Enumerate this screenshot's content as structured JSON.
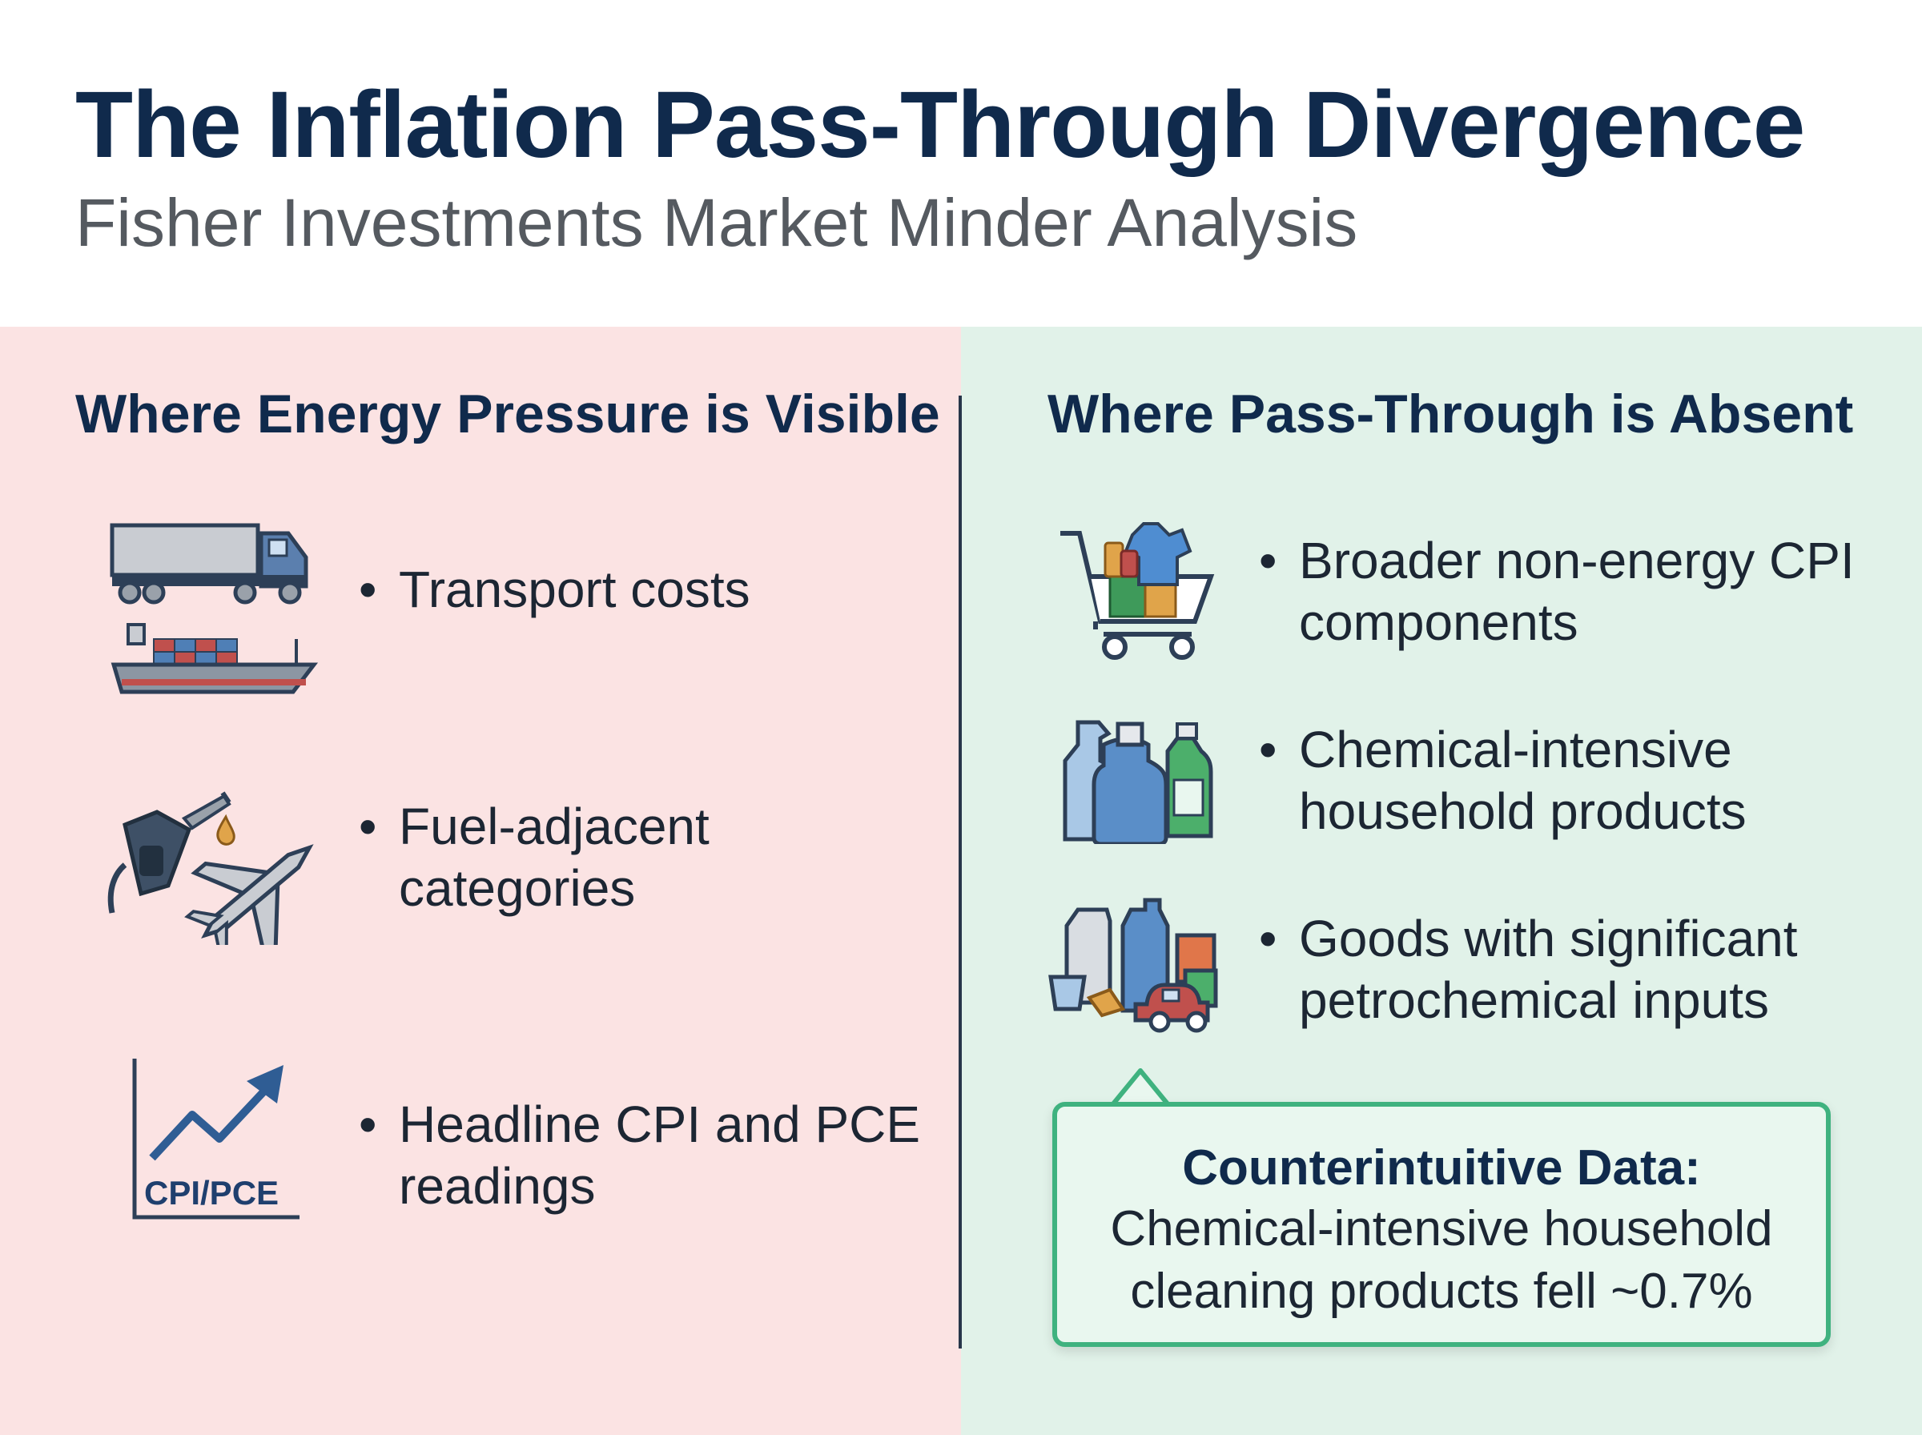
{
  "header": {
    "title": "The Inflation Pass-Through Divergence",
    "subtitle": "Fisher Investments Market Minder Analysis"
  },
  "left": {
    "heading": "Where Energy Pressure is Visible",
    "items": [
      {
        "text": "Transport costs",
        "icon": "truck-and-ship-icon"
      },
      {
        "text": "Fuel-adjacent categories",
        "icon": "fuel-nozzle-and-airplane-icon"
      },
      {
        "text": "Headline CPI and PCE readings",
        "icon": "rising-chart-icon",
        "icon_label": "CPI/PCE"
      }
    ]
  },
  "right": {
    "heading": "Where Pass-Through is Absent",
    "items": [
      {
        "text": "Broader non-energy CPI components",
        "icon": "shopping-cart-icon"
      },
      {
        "text": "Chemical-intensive household products",
        "icon": "cleaning-bottles-icon"
      },
      {
        "text": "Goods with significant petrochemical inputs",
        "icon": "plastic-goods-icon"
      }
    ]
  },
  "callout": {
    "title": "Counterintuitive Data:",
    "text": "Chemical-intensive household cleaning products fell ~0.7%"
  },
  "colors": {
    "navy": "#102a4c",
    "left_bg": "#fbe3e3",
    "right_bg": "#e1f2e9",
    "callout_border": "#3fb27f"
  }
}
